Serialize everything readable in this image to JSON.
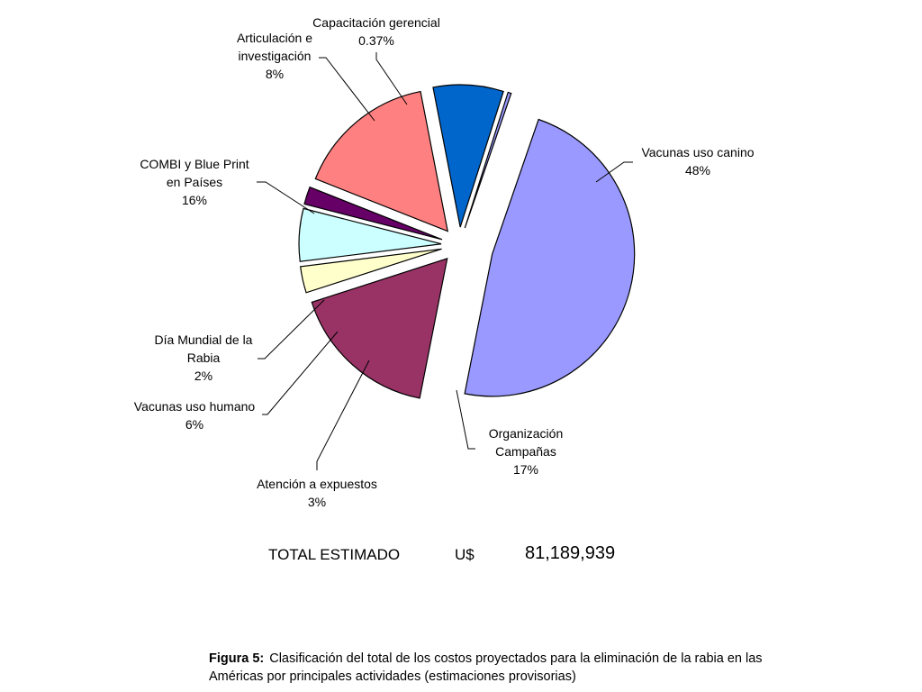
{
  "chart_data": {
    "type": "pie",
    "title": "",
    "slices": [
      {
        "label": "Vacunas uso canino",
        "value": 48,
        "value_label": "48%",
        "color": "#9999ff"
      },
      {
        "label": "Organización Campañas",
        "value": 17,
        "value_label": "17%",
        "color": "#993366"
      },
      {
        "label": "Atención a expuestos",
        "value": 3,
        "value_label": "3%",
        "color": "#ffffcc"
      },
      {
        "label": "Vacunas uso humano",
        "value": 6,
        "value_label": "6%",
        "color": "#ccffff"
      },
      {
        "label": "Día Mundial de la Rabia",
        "value": 2,
        "value_label": "2%",
        "color": "#660066"
      },
      {
        "label": "COMBI y Blue Print en Países",
        "value": 16,
        "value_label": "16%",
        "color": "#ff8080"
      },
      {
        "label": "Articulación e investigación",
        "value": 8,
        "value_label": "8%",
        "color": "#0066cc"
      },
      {
        "label": "Capacitación gerencial",
        "value": 0.37,
        "value_label": "0.37%",
        "color": "#9999ff"
      }
    ]
  },
  "total": {
    "label": "TOTAL ESTIMADO",
    "currency": "U$",
    "amount": "81,189,939"
  },
  "caption": {
    "prefix": "Figura 5:",
    "text": "Clasificación del total de los costos proyectados para la eliminación de la rabia en las Américas por principales actividades (estimaciones provisorias)"
  }
}
